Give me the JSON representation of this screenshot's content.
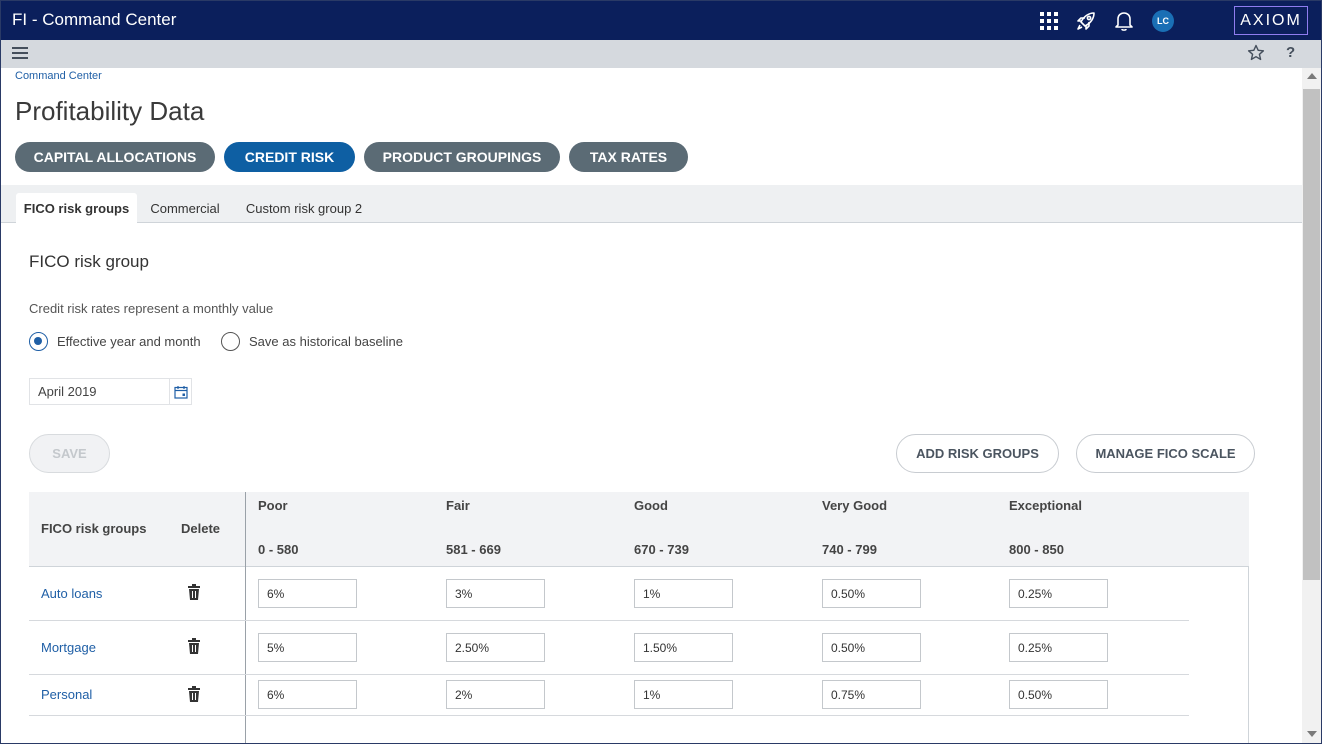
{
  "app": {
    "title": "FI - Command Center",
    "logo": "AXIOM",
    "user_initials": "LC"
  },
  "topbar_icons": [
    "apps-grid-icon",
    "rocket-icon",
    "bell-icon"
  ],
  "subbar_icons": [
    "menu-icon",
    "star-icon"
  ],
  "help_label": "?",
  "breadcrumb": "Command Center",
  "page_title": "Profitability Data",
  "nav_pills": [
    {
      "label": "CAPITAL ALLOCATIONS",
      "active": false
    },
    {
      "label": "CREDIT RISK",
      "active": true
    },
    {
      "label": "PRODUCT GROUPINGS",
      "active": false
    },
    {
      "label": "TAX RATES",
      "active": false
    }
  ],
  "tabs": [
    {
      "label": "FICO risk groups",
      "active": true
    },
    {
      "label": "Commercial",
      "active": false
    },
    {
      "label": "Custom risk group 2",
      "active": false
    }
  ],
  "section": {
    "title": "FICO risk group",
    "note": "Credit risk rates represent a monthly value",
    "radio_effective": "Effective year and month",
    "radio_baseline": "Save as historical baseline",
    "selected_radio": "Effective year and month",
    "date_value": "April 2019"
  },
  "buttons": {
    "save": "SAVE",
    "add_risk_groups": "ADD RISK GROUPS",
    "manage_fico_scale": "MANAGE FICO SCALE"
  },
  "table": {
    "headers": {
      "group": "FICO risk groups",
      "delete": "Delete"
    },
    "columns": [
      {
        "name": "Poor",
        "range": "0 - 580"
      },
      {
        "name": "Fair",
        "range": "581 - 669"
      },
      {
        "name": "Good",
        "range": "670 - 739"
      },
      {
        "name": "Very Good",
        "range": "740 - 799"
      },
      {
        "name": "Exceptional",
        "range": "800 - 850"
      }
    ],
    "rows": [
      {
        "name": "Auto loans",
        "values": [
          "6%",
          "3%",
          "1%",
          "0.50%",
          "0.25%"
        ]
      },
      {
        "name": "Mortgage",
        "values": [
          "5%",
          "2.50%",
          "1.50%",
          "0.50%",
          "0.25%"
        ]
      },
      {
        "name": "Personal",
        "values": [
          "6%",
          "2%",
          "1%",
          "0.75%",
          "0.50%"
        ]
      }
    ]
  },
  "colors": {
    "topbar": "#0b1f5c",
    "accent": "#0e5fa3",
    "pill": "#5b6b75",
    "link": "#1f5fa6"
  }
}
